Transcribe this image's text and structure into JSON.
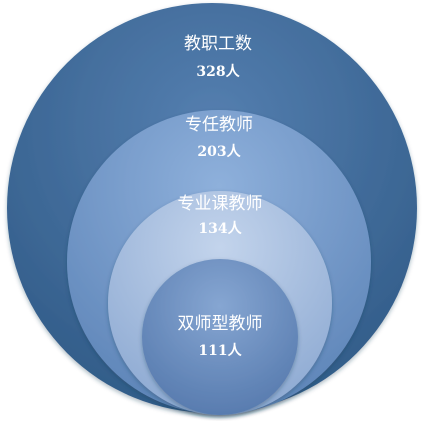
{
  "diagram": {
    "type": "nested-circles",
    "levels": [
      {
        "label": "教职工数",
        "count": "328人",
        "value": 328,
        "color": "#3d6b98"
      },
      {
        "label": "专任教师",
        "count": "203人",
        "value": 203,
        "color": "#6d93c4"
      },
      {
        "label": "专业课教师",
        "count": "134人",
        "value": 134,
        "color": "#a9bfdf"
      },
      {
        "label": "双师型教师",
        "count": "111人",
        "value": 111,
        "color": "#6c8fbf"
      }
    ]
  }
}
